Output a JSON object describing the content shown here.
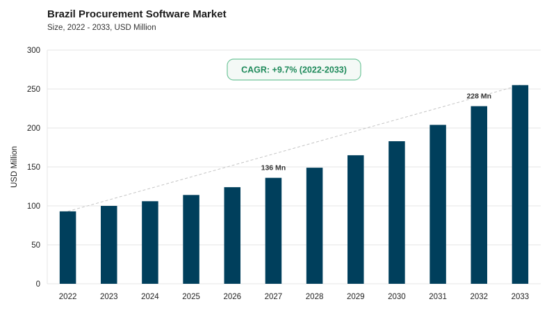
{
  "header": {
    "title": "Brazil Procurement Software Market",
    "subtitle": "Size, 2022 - 2033, USD Million"
  },
  "colors": {
    "bar": "#003f5c",
    "grid": "#e6e6e6",
    "trend": "#c4c4c4",
    "badge_text": "#1f8a5b",
    "badge_border": "#6fc59a",
    "badge_fill": "#f4f9f6"
  },
  "chart_data": {
    "type": "bar",
    "categories": [
      "2022",
      "2023",
      "2024",
      "2025",
      "2026",
      "2027",
      "2028",
      "2029",
      "2030",
      "2031",
      "2032",
      "2033"
    ],
    "values": [
      93,
      100,
      106,
      114,
      124,
      136,
      149,
      165,
      183,
      204,
      228,
      255
    ],
    "ylabel": "USD Million",
    "xlabel": "",
    "ylim": [
      0,
      300
    ],
    "yticks": [
      0,
      50,
      100,
      150,
      200,
      250,
      300
    ],
    "grid": true,
    "data_labels": [
      {
        "category": "2027",
        "text": "136 Mn"
      },
      {
        "category": "2032",
        "text": "228 Mn"
      }
    ],
    "annotation": "CAGR: +9.7% (2022-2033)",
    "trend_line": {
      "from": "2022",
      "to": "2033"
    }
  }
}
